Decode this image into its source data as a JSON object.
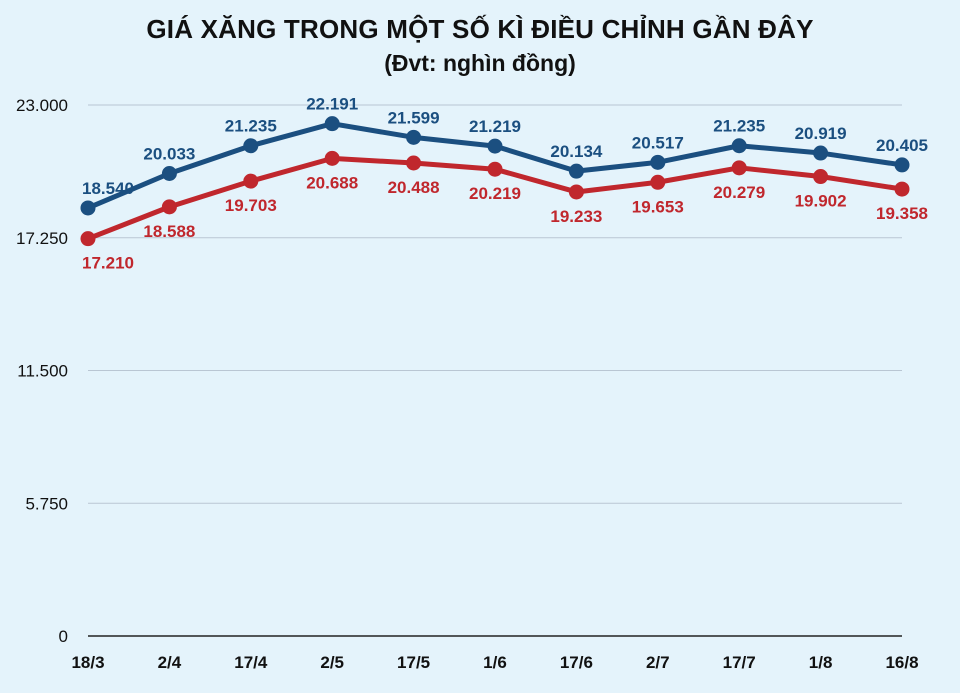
{
  "header": {
    "title": "GIÁ XĂNG TRONG MỘT SỐ KÌ ĐIỀU CHỈNH GẦN ĐÂY",
    "subtitle": "(Đvt: nghìn đồng)"
  },
  "chart_data": {
    "type": "line",
    "title": "GIÁ XĂNG TRONG MỘT SỐ KÌ ĐIỀU CHỈNH GẦN ĐÂY",
    "subtitle": "(Đvt: nghìn đồng)",
    "xlabel": "",
    "ylabel": "",
    "categories": [
      "18/3",
      "2/4",
      "17/4",
      "2/5",
      "17/5",
      "1/6",
      "17/6",
      "2/7",
      "17/7",
      "1/8",
      "16/8"
    ],
    "ylim": [
      0,
      23000
    ],
    "yticks": [
      0,
      5750,
      11500,
      17250,
      23000
    ],
    "ytick_labels": [
      "0",
      "5.750",
      "11.500",
      "17.250",
      "23.000"
    ],
    "grid": true,
    "series": [
      {
        "color": "#1b4f80",
        "values": [
          18540,
          20033,
          21235,
          22191,
          21599,
          21219,
          20134,
          20517,
          21235,
          20919,
          20405
        ],
        "labels": [
          "18.540",
          "20.033",
          "21.235",
          "22.191",
          "21.599",
          "21.219",
          "20.134",
          "20.517",
          "21.235",
          "20.919",
          "20.405"
        ]
      },
      {
        "color": "#c0272d",
        "values": [
          17210,
          18588,
          19703,
          20688,
          20488,
          20219,
          19233,
          19653,
          20279,
          19902,
          19358
        ],
        "labels": [
          "17.210",
          "18.588",
          "19.703",
          "20.688",
          "20.488",
          "20.219",
          "19.233",
          "19.653",
          "20.279",
          "19.902",
          "19.358"
        ]
      }
    ]
  }
}
